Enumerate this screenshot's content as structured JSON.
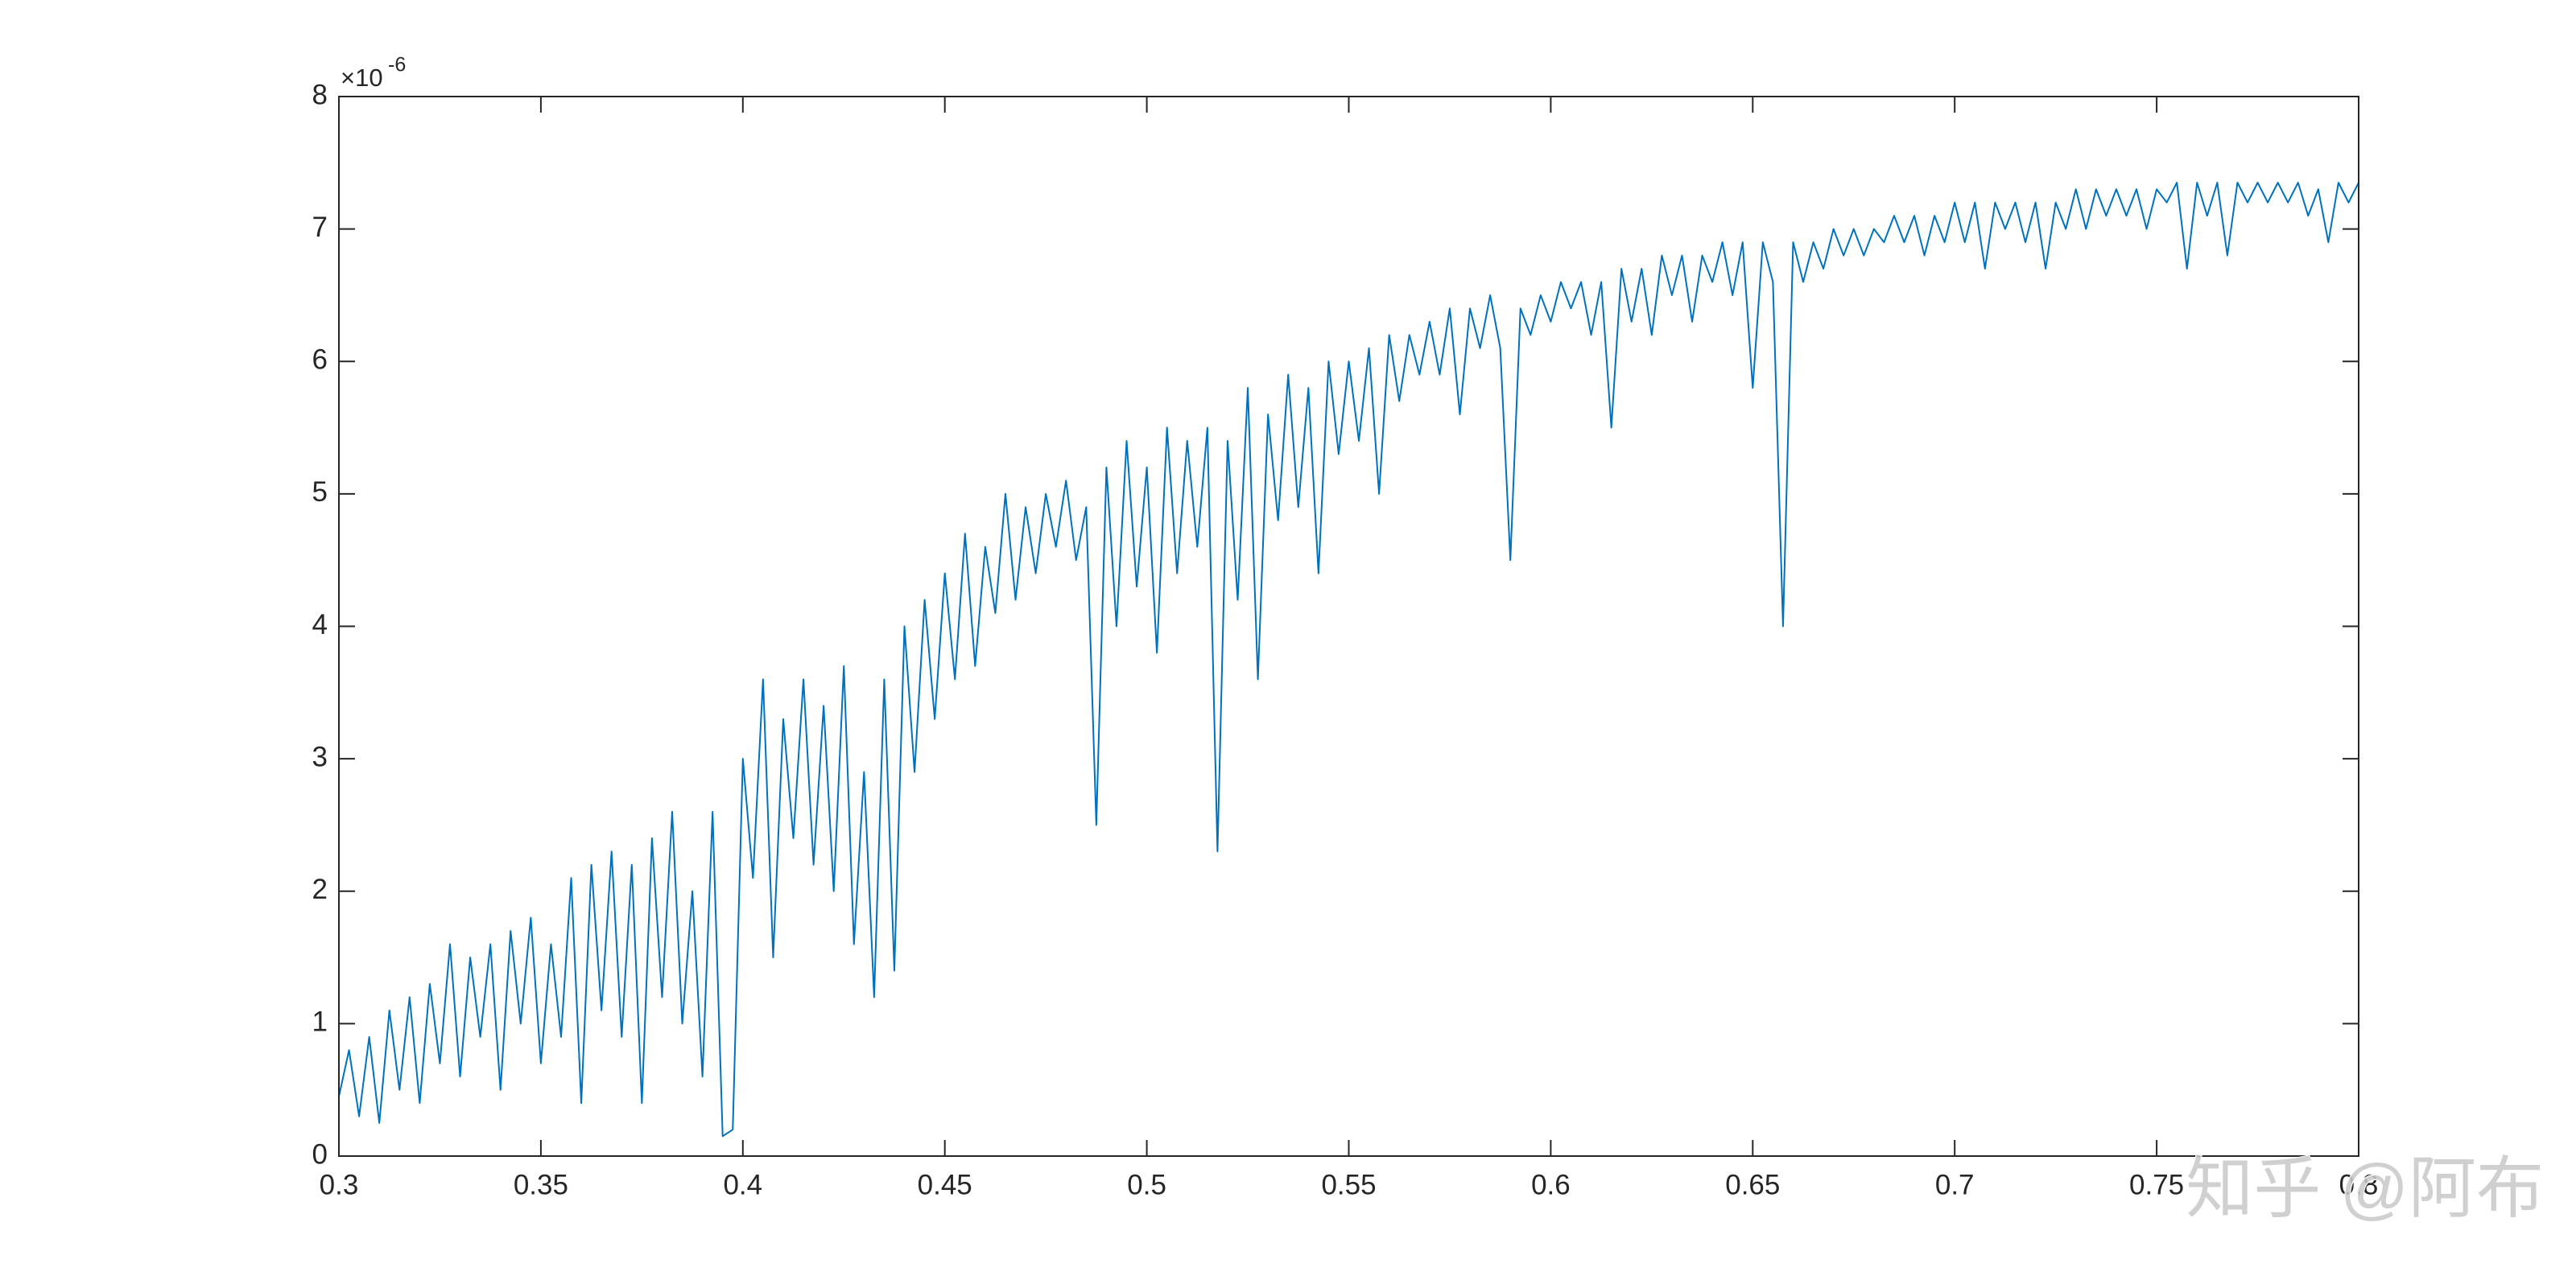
{
  "chart_data": {
    "type": "line",
    "x": [
      0.3,
      0.3025,
      0.305,
      0.3075,
      0.31,
      0.3125,
      0.315,
      0.3175,
      0.32,
      0.3225,
      0.325,
      0.3275,
      0.33,
      0.3325,
      0.335,
      0.3375,
      0.34,
      0.3425,
      0.345,
      0.3475,
      0.35,
      0.3525,
      0.355,
      0.3575,
      0.36,
      0.3625,
      0.365,
      0.3675,
      0.37,
      0.3725,
      0.375,
      0.3775,
      0.38,
      0.3825,
      0.385,
      0.3875,
      0.39,
      0.3925,
      0.395,
      0.3975,
      0.4,
      0.4025,
      0.405,
      0.4075,
      0.41,
      0.4125,
      0.415,
      0.4175,
      0.42,
      0.4225,
      0.425,
      0.4275,
      0.43,
      0.4325,
      0.435,
      0.4375,
      0.44,
      0.4425,
      0.445,
      0.4475,
      0.45,
      0.4525,
      0.455,
      0.4575,
      0.46,
      0.4625,
      0.465,
      0.4675,
      0.47,
      0.4725,
      0.475,
      0.4775,
      0.48,
      0.4825,
      0.485,
      0.4875,
      0.49,
      0.4925,
      0.495,
      0.4975,
      0.5,
      0.5025,
      0.505,
      0.5075,
      0.51,
      0.5125,
      0.515,
      0.5175,
      0.52,
      0.5225,
      0.525,
      0.5275,
      0.53,
      0.5325,
      0.535,
      0.5375,
      0.54,
      0.5425,
      0.545,
      0.5475,
      0.55,
      0.5525,
      0.555,
      0.5575,
      0.56,
      0.5625,
      0.565,
      0.5675,
      0.57,
      0.5725,
      0.575,
      0.5775,
      0.58,
      0.5825,
      0.585,
      0.5875,
      0.59,
      0.5925,
      0.595,
      0.5975,
      0.6,
      0.6025,
      0.605,
      0.6075,
      0.61,
      0.6125,
      0.615,
      0.6175,
      0.62,
      0.6225,
      0.625,
      0.6275,
      0.63,
      0.6325,
      0.635,
      0.6375,
      0.64,
      0.6425,
      0.645,
      0.6475,
      0.65,
      0.6525,
      0.655,
      0.6575,
      0.66,
      0.6625,
      0.665,
      0.6675,
      0.67,
      0.6725,
      0.675,
      0.6775,
      0.68,
      0.6825,
      0.685,
      0.6875,
      0.69,
      0.6925,
      0.695,
      0.6975,
      0.7,
      0.7025,
      0.705,
      0.7075,
      0.71,
      0.7125,
      0.715,
      0.7175,
      0.72,
      0.7225,
      0.725,
      0.7275,
      0.73,
      0.7325,
      0.735,
      0.7375,
      0.74,
      0.7425,
      0.745,
      0.7475,
      0.75,
      0.7525,
      0.755,
      0.7575,
      0.76,
      0.7625,
      0.765,
      0.7675,
      0.77,
      0.7725,
      0.775,
      0.7775,
      0.78,
      0.7825,
      0.785,
      0.7875,
      0.79,
      0.7925,
      0.795,
      0.7975,
      0.8
    ],
    "series": [
      {
        "color": "#0072bd",
        "values": [
          0.45,
          0.8,
          0.3,
          0.9,
          0.25,
          1.1,
          0.5,
          1.2,
          0.4,
          1.3,
          0.7,
          1.6,
          0.6,
          1.5,
          0.9,
          1.6,
          0.5,
          1.7,
          1.0,
          1.8,
          0.7,
          1.6,
          0.9,
          2.1,
          0.4,
          2.2,
          1.1,
          2.3,
          0.9,
          2.2,
          0.4,
          2.4,
          1.2,
          2.6,
          1.0,
          2.0,
          0.6,
          2.6,
          0.15,
          0.2,
          3.0,
          2.1,
          3.6,
          1.5,
          3.3,
          2.4,
          3.6,
          2.2,
          3.4,
          2.0,
          3.7,
          1.6,
          2.9,
          1.2,
          3.6,
          1.4,
          4.0,
          2.9,
          4.2,
          3.3,
          4.4,
          3.6,
          4.7,
          3.7,
          4.6,
          4.1,
          5.0,
          4.2,
          4.9,
          4.4,
          5.0,
          4.6,
          5.1,
          4.5,
          4.9,
          2.5,
          5.2,
          4.0,
          5.4,
          4.3,
          5.2,
          3.8,
          5.5,
          4.4,
          5.4,
          4.6,
          5.5,
          2.3,
          5.4,
          4.2,
          5.8,
          3.6,
          5.6,
          4.8,
          5.9,
          4.9,
          5.8,
          4.4,
          6.0,
          5.3,
          6.0,
          5.4,
          6.1,
          5.0,
          6.2,
          5.7,
          6.2,
          5.9,
          6.3,
          5.9,
          6.4,
          5.6,
          6.4,
          6.1,
          6.5,
          6.1,
          4.5,
          6.4,
          6.2,
          6.5,
          6.3,
          6.6,
          6.4,
          6.6,
          6.2,
          6.6,
          5.5,
          6.7,
          6.3,
          6.7,
          6.2,
          6.8,
          6.5,
          6.8,
          6.3,
          6.8,
          6.6,
          6.9,
          6.5,
          6.9,
          5.8,
          6.9,
          6.6,
          4.0,
          6.9,
          6.6,
          6.9,
          6.7,
          7.0,
          6.8,
          7.0,
          6.8,
          7.0,
          6.9,
          7.1,
          6.9,
          7.1,
          6.8,
          7.1,
          6.9,
          7.2,
          6.9,
          7.2,
          6.7,
          7.2,
          7.0,
          7.2,
          6.9,
          7.2,
          6.7,
          7.2,
          7.0,
          7.3,
          7.0,
          7.3,
          7.1,
          7.3,
          7.1,
          7.3,
          7.0,
          7.3,
          7.2,
          7.35,
          6.7,
          7.35,
          7.1,
          7.35,
          6.8,
          7.35,
          7.2,
          7.35,
          7.2,
          7.35,
          7.2,
          7.35,
          7.1,
          7.3,
          6.9,
          7.35,
          7.2,
          7.35
        ]
      }
    ],
    "xlim": [
      0.3,
      0.8
    ],
    "ylim": [
      0,
      8
    ],
    "xticks": [
      0.3,
      0.35,
      0.4,
      0.45,
      0.5,
      0.55,
      0.6,
      0.65,
      0.7,
      0.75,
      0.8
    ],
    "yticks": [
      0,
      1,
      2,
      3,
      4,
      5,
      6,
      7,
      8
    ],
    "y_exponent": {
      "base": "×10",
      "power": "-6"
    },
    "box": true
  },
  "watermark": "知乎 @阿布"
}
